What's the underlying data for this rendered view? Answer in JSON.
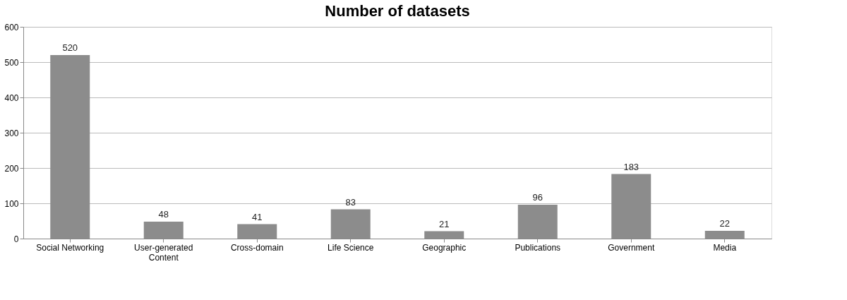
{
  "chart_data": {
    "type": "bar",
    "title": "Number of datasets",
    "categories": [
      "Social Networking",
      "User-generated Content",
      "Cross-domain",
      "Life Science",
      "Geographic",
      "Publications",
      "Government",
      "Media"
    ],
    "values": [
      520,
      48,
      41,
      83,
      21,
      96,
      183,
      22
    ],
    "color": "#8c8c8c",
    "ylim": [
      0,
      600
    ],
    "yticks": [
      0,
      100,
      200,
      300,
      400,
      500,
      600
    ],
    "grid": "y",
    "data_labels": true
  }
}
